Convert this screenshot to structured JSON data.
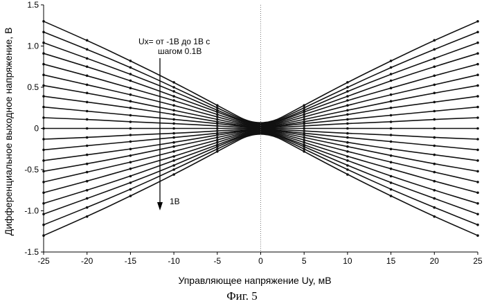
{
  "chart_data": {
    "type": "line",
    "title": "",
    "xlabel": "Управляющее напряжение Uy, мВ",
    "ylabel": "Дифференциальное выходное напряжение, В",
    "xlim": [
      -25,
      25
    ],
    "ylim": [
      -1.5,
      1.5
    ],
    "x_ticks": [
      "-25",
      "-20",
      "-15",
      "-10",
      "-5",
      "0",
      "5",
      "10",
      "15",
      "20",
      "25"
    ],
    "y_ticks": [
      "1.5",
      "1.0",
      "0.5",
      "0",
      "-0.5",
      "-1.0",
      "-1.5"
    ],
    "grid": false,
    "x": [
      -25,
      -20,
      -15,
      -10,
      -5,
      0,
      5,
      10,
      15,
      20,
      25
    ],
    "series": [
      {
        "values": [
          1.3,
          1.07,
          0.82,
          0.56,
          0.28,
          0,
          0.28,
          0.56,
          0.82,
          1.07,
          1.3
        ]
      },
      {
        "values": [
          1.17,
          0.96,
          0.74,
          0.5,
          0.25,
          0,
          0.25,
          0.5,
          0.74,
          0.96,
          1.17
        ]
      },
      {
        "values": [
          1.04,
          0.85,
          0.66,
          0.45,
          0.22,
          0,
          0.22,
          0.45,
          0.66,
          0.85,
          1.04
        ]
      },
      {
        "values": [
          0.91,
          0.75,
          0.58,
          0.39,
          0.2,
          0,
          0.2,
          0.39,
          0.58,
          0.75,
          0.91
        ]
      },
      {
        "values": [
          0.78,
          0.64,
          0.49,
          0.34,
          0.17,
          0,
          0.17,
          0.34,
          0.49,
          0.64,
          0.78
        ]
      },
      {
        "values": [
          0.65,
          0.53,
          0.41,
          0.28,
          0.14,
          0,
          0.14,
          0.28,
          0.41,
          0.53,
          0.65
        ]
      },
      {
        "values": [
          0.52,
          0.43,
          0.33,
          0.22,
          0.11,
          0,
          0.11,
          0.22,
          0.33,
          0.43,
          0.52
        ]
      },
      {
        "values": [
          0.39,
          0.32,
          0.25,
          0.17,
          0.08,
          0,
          0.08,
          0.17,
          0.25,
          0.32,
          0.39
        ]
      },
      {
        "values": [
          0.26,
          0.21,
          0.16,
          0.11,
          0.06,
          0,
          0.06,
          0.11,
          0.16,
          0.21,
          0.26
        ]
      },
      {
        "values": [
          0.13,
          0.11,
          0.08,
          0.06,
          0.03,
          0,
          0.03,
          0.06,
          0.08,
          0.11,
          0.13
        ]
      },
      {
        "values": [
          0,
          0,
          0,
          0,
          0,
          0,
          0,
          0,
          0,
          0,
          0
        ]
      },
      {
        "values": [
          -0.13,
          -0.11,
          -0.08,
          -0.06,
          -0.03,
          0,
          -0.03,
          -0.06,
          -0.08,
          -0.11,
          -0.13
        ]
      },
      {
        "values": [
          -0.26,
          -0.21,
          -0.16,
          -0.11,
          -0.06,
          0,
          -0.06,
          -0.11,
          -0.16,
          -0.21,
          -0.26
        ]
      },
      {
        "values": [
          -0.39,
          -0.32,
          -0.25,
          -0.17,
          -0.08,
          0,
          -0.08,
          -0.17,
          -0.25,
          -0.32,
          -0.39
        ]
      },
      {
        "values": [
          -0.52,
          -0.43,
          -0.33,
          -0.22,
          -0.11,
          0,
          -0.11,
          -0.22,
          -0.33,
          -0.43,
          -0.52
        ]
      },
      {
        "values": [
          -0.65,
          -0.53,
          -0.41,
          -0.28,
          -0.14,
          0,
          -0.14,
          -0.28,
          -0.41,
          -0.53,
          -0.65
        ]
      },
      {
        "values": [
          -0.78,
          -0.64,
          -0.49,
          -0.34,
          -0.17,
          0,
          -0.17,
          -0.34,
          -0.49,
          -0.64,
          -0.78
        ]
      },
      {
        "values": [
          -0.91,
          -0.75,
          -0.58,
          -0.39,
          -0.2,
          0,
          -0.2,
          -0.39,
          -0.58,
          -0.75,
          -0.91
        ]
      },
      {
        "values": [
          -1.04,
          -0.85,
          -0.66,
          -0.45,
          -0.22,
          0,
          -0.22,
          -0.45,
          -0.66,
          -0.85,
          -1.04
        ]
      },
      {
        "values": [
          -1.17,
          -0.96,
          -0.74,
          -0.5,
          -0.25,
          0,
          -0.25,
          -0.5,
          -0.74,
          -0.96,
          -1.17
        ]
      },
      {
        "values": [
          -1.3,
          -1.07,
          -0.82,
          -0.56,
          -0.28,
          0,
          -0.28,
          -0.56,
          -0.82,
          -1.07,
          -1.3
        ]
      }
    ],
    "annotations": {
      "range_line1": "Ux= от  -1В до 1В с",
      "range_line2": "шагом 0.1В",
      "arrow_end_label": "1В"
    },
    "colors": {
      "line": "#111111",
      "marker": "#111111",
      "axis": "#000000"
    }
  },
  "caption": "Фиг. 5"
}
